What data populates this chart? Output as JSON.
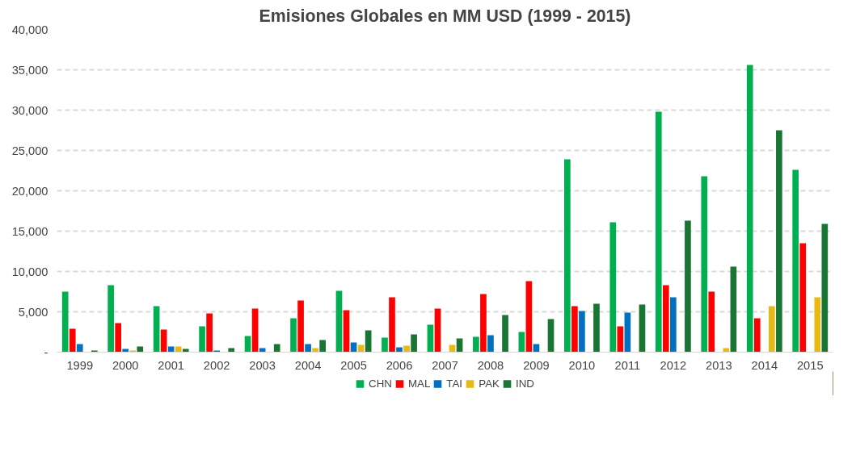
{
  "chart_data": {
    "type": "bar",
    "title": "Emisiones Globales en MM USD (1999 - 2015)",
    "categories": [
      "1999",
      "2000",
      "2001",
      "2002",
      "2003",
      "2004",
      "2005",
      "2006",
      "2007",
      "2008",
      "2009",
      "2010",
      "2011",
      "2012",
      "2013",
      "2014",
      "2015"
    ],
    "series": [
      {
        "name": "CHN",
        "color": "#00b050",
        "values": [
          7500,
          8300,
          5700,
          3200,
          2000,
          4200,
          7600,
          1800,
          3400,
          1900,
          2500,
          23900,
          16100,
          29800,
          21800,
          35600,
          22600
        ]
      },
      {
        "name": "MAL",
        "color": "#ff0000",
        "values": [
          2900,
          3600,
          2800,
          4800,
          5400,
          6400,
          5200,
          6800,
          5400,
          7200,
          8800,
          5700,
          3200,
          8300,
          7500,
          4200,
          13500
        ]
      },
      {
        "name": "TAI",
        "color": "#0070c0",
        "values": [
          1000,
          400,
          700,
          200,
          500,
          1000,
          1200,
          600,
          null,
          2100,
          1000,
          5100,
          4900,
          6800,
          null,
          null,
          null
        ]
      },
      {
        "name": "PAK",
        "color": "#e6b914",
        "values": [
          null,
          200,
          700,
          null,
          null,
          500,
          900,
          800,
          900,
          null,
          null,
          null,
          null,
          null,
          500,
          5700,
          6800
        ]
      },
      {
        "name": "IND",
        "color": "#187534",
        "values": [
          200,
          700,
          400,
          500,
          1000,
          1500,
          2700,
          2200,
          1700,
          4600,
          4100,
          6000,
          5900,
          16300,
          10600,
          27500,
          15900
        ]
      }
    ],
    "ylim": [
      0,
      40000
    ],
    "yticks": [
      {
        "value": 0,
        "label": "-"
      },
      {
        "value": 5000,
        "label": "5,000"
      },
      {
        "value": 10000,
        "label": "10,000"
      },
      {
        "value": 15000,
        "label": "15,000"
      },
      {
        "value": 20000,
        "label": "20,000"
      },
      {
        "value": 25000,
        "label": "25,000"
      },
      {
        "value": 30000,
        "label": "30,000"
      },
      {
        "value": 35000,
        "label": "35,000"
      },
      {
        "value": 40000,
        "label": "40,000"
      }
    ],
    "grid": "y",
    "legend": "bottom"
  }
}
